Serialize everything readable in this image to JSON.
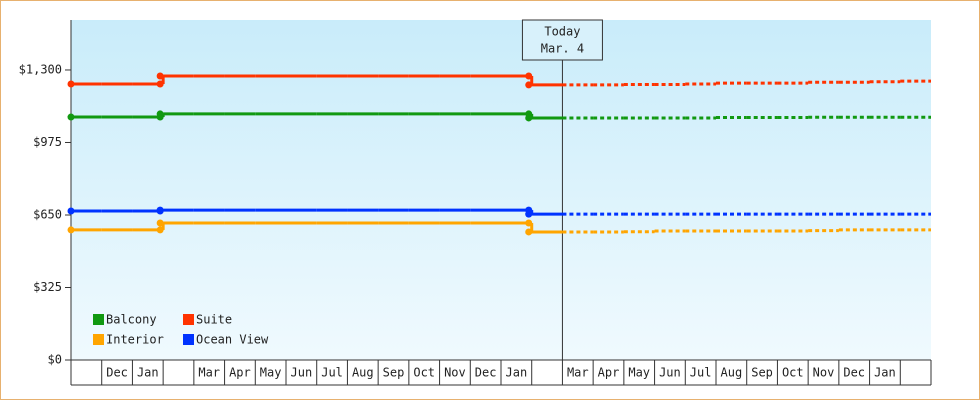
{
  "chart_data": {
    "type": "line",
    "annotation": [
      "Today",
      "Mar. 4"
    ],
    "today_index": 16,
    "categories": [
      null,
      "Dec",
      "Jan",
      null,
      "Mar",
      "Apr",
      "May",
      "Jun",
      "Jul",
      "Aug",
      "Sep",
      "Oct",
      "Nov",
      "Dec",
      "Jan",
      null,
      "Mar",
      "Apr",
      "May",
      "Jun",
      "Jul",
      "Aug",
      "Sep",
      "Oct",
      "Nov",
      "Dec",
      "Jan",
      null
    ],
    "ylim": [
      0,
      1524
    ],
    "yticks": [
      {
        "value": 0,
        "label": "$0"
      },
      {
        "value": 325,
        "label": "$325"
      },
      {
        "value": 650,
        "label": "$650"
      },
      {
        "value": 975,
        "label": "$975"
      },
      {
        "value": 1300,
        "label": "$1,300"
      }
    ],
    "series": [
      {
        "name": "Balcony",
        "color": "#119911",
        "values": [
          1089,
          1089,
          1089,
          1103,
          1103,
          1103,
          1103,
          1103,
          1103,
          1103,
          1103,
          1103,
          1103,
          1103,
          1103,
          1085,
          1085,
          1085,
          1085,
          1085,
          1085,
          1087,
          1087,
          1087,
          1088,
          1088,
          1088,
          1088
        ]
      },
      {
        "name": "Suite",
        "color": "#ff3300",
        "values": [
          1237,
          1237,
          1237,
          1273,
          1273,
          1273,
          1273,
          1273,
          1273,
          1273,
          1273,
          1273,
          1273,
          1273,
          1273,
          1233,
          1233,
          1233,
          1235,
          1235,
          1237,
          1241,
          1241,
          1241,
          1245,
          1245,
          1247,
          1250
        ]
      },
      {
        "name": "Interior",
        "color": "#ffa500",
        "values": [
          583,
          583,
          583,
          614,
          614,
          614,
          614,
          614,
          614,
          614,
          614,
          614,
          614,
          614,
          614,
          574,
          574,
          574,
          575,
          578,
          578,
          578,
          578,
          578,
          580,
          583,
          583,
          583
        ]
      },
      {
        "name": "Ocean View",
        "color": "#0033ff",
        "values": [
          668,
          668,
          668,
          672,
          672,
          672,
          672,
          672,
          672,
          672,
          672,
          672,
          672,
          672,
          672,
          654,
          654,
          654,
          654,
          654,
          654,
          654,
          654,
          654,
          654,
          654,
          654,
          654
        ]
      }
    ]
  }
}
